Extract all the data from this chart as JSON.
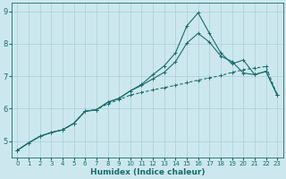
{
  "xlabel": "Humidex (Indice chaleur)",
  "bg_color": "#cce8ee",
  "grid_color": "#aacdd6",
  "line_color": "#1a6b6b",
  "xlim": [
    -0.5,
    23.5
  ],
  "ylim": [
    4.5,
    9.25
  ],
  "xticks": [
    0,
    1,
    2,
    3,
    4,
    5,
    6,
    7,
    8,
    9,
    10,
    11,
    12,
    13,
    14,
    15,
    16,
    17,
    18,
    19,
    20,
    21,
    22,
    23
  ],
  "yticks": [
    5,
    6,
    7,
    8,
    9
  ],
  "line1_x": [
    0,
    1,
    2,
    3,
    4,
    5,
    6,
    7,
    8,
    9,
    10,
    11,
    12,
    13,
    14,
    15,
    16,
    17,
    18,
    19,
    20,
    21,
    22,
    23
  ],
  "line1_y": [
    4.72,
    4.95,
    5.15,
    5.27,
    5.35,
    5.55,
    5.92,
    5.97,
    6.15,
    6.28,
    6.42,
    6.5,
    6.58,
    6.65,
    6.72,
    6.8,
    6.88,
    6.95,
    7.02,
    7.12,
    7.2,
    7.25,
    7.3,
    6.42
  ],
  "line2_x": [
    0,
    1,
    2,
    3,
    4,
    5,
    6,
    7,
    8,
    9,
    10,
    11,
    12,
    13,
    14,
    15,
    16,
    17,
    18,
    19,
    20,
    21,
    22,
    23
  ],
  "line2_y": [
    4.72,
    4.95,
    5.15,
    5.27,
    5.35,
    5.55,
    5.92,
    5.97,
    6.2,
    6.32,
    6.55,
    6.72,
    6.92,
    7.12,
    7.45,
    8.02,
    8.32,
    8.05,
    7.62,
    7.45,
    7.1,
    7.05,
    7.15,
    6.42
  ],
  "line3_x": [
    0,
    1,
    2,
    3,
    4,
    5,
    6,
    7,
    8,
    9,
    10,
    11,
    12,
    13,
    14,
    15,
    16,
    17,
    18,
    19,
    20,
    21,
    22,
    23
  ],
  "line3_y": [
    4.72,
    4.95,
    5.15,
    5.27,
    5.35,
    5.55,
    5.92,
    5.97,
    6.2,
    6.32,
    6.55,
    6.75,
    7.05,
    7.32,
    7.72,
    8.55,
    8.95,
    8.32,
    7.72,
    7.38,
    7.5,
    7.05,
    7.15,
    6.42
  ]
}
